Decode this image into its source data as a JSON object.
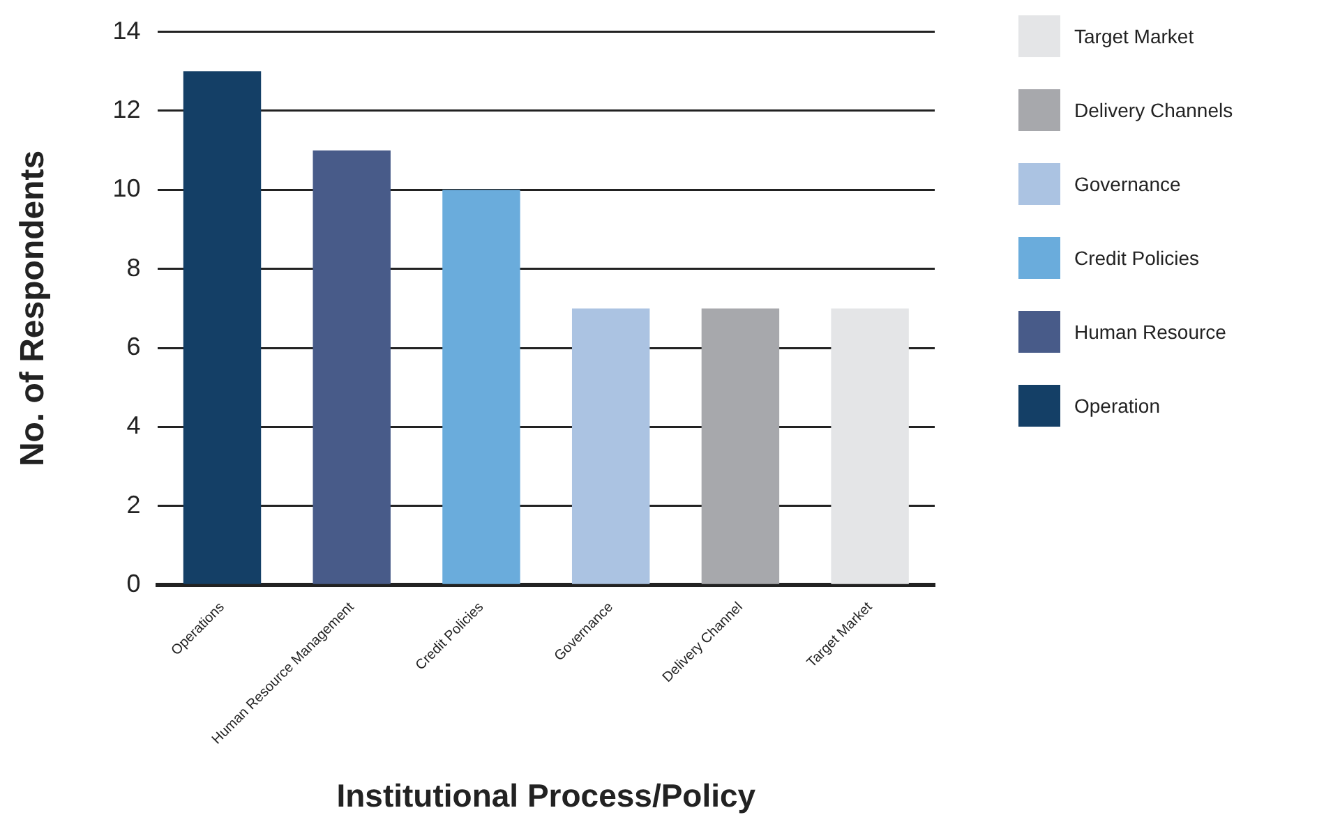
{
  "chart_data": {
    "type": "bar",
    "stacked": true,
    "xlabel": "Institutional Process/Policy",
    "ylabel": "No. of Respondents",
    "categories": [
      "Operations",
      "Human Resource Management",
      "Credit Policies",
      "Governance",
      "Delivery Channel",
      "Target Market"
    ],
    "series": [
      {
        "name": "Target Market",
        "color": "#e4e5e7",
        "values": [
          null,
          null,
          null,
          null,
          null,
          7
        ]
      },
      {
        "name": "Delivery Channels",
        "color": "#a7a8ac",
        "values": [
          null,
          null,
          null,
          null,
          7,
          null
        ]
      },
      {
        "name": "Governance",
        "color": "#abc3e2",
        "values": [
          null,
          null,
          null,
          7,
          null,
          null
        ]
      },
      {
        "name": "Credit Policies",
        "color": "#6aacdc",
        "values": [
          null,
          null,
          10,
          null,
          null,
          null
        ]
      },
      {
        "name": "Human Resource",
        "color": "#485b89",
        "values": [
          null,
          11,
          null,
          null,
          null,
          null
        ]
      },
      {
        "name": "Operation",
        "color": "#143f66",
        "values": [
          13,
          null,
          null,
          null,
          null,
          null
        ]
      }
    ],
    "ylim": [
      0,
      14
    ],
    "yticks": [
      0,
      2,
      4,
      6,
      8,
      10,
      12,
      14
    ],
    "grid": "y",
    "legend": "right"
  }
}
